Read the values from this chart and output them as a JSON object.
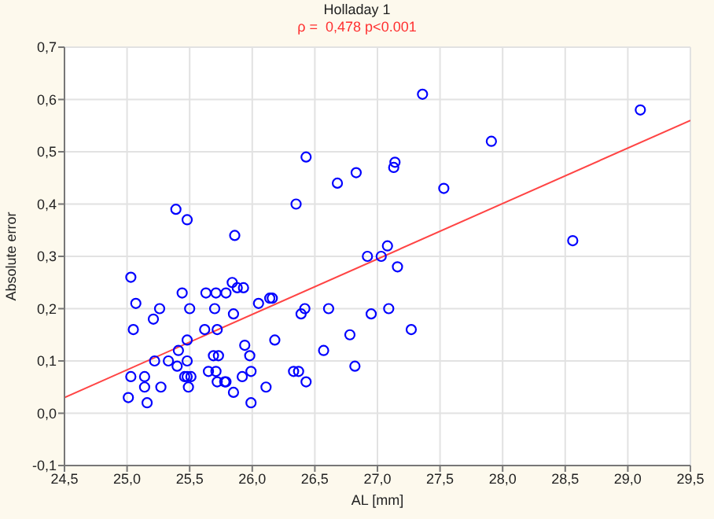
{
  "chart_data": {
    "type": "scatter",
    "title": "Holladay 1",
    "subtitle": "ρ =  0,478 p<0.001",
    "xlabel": "AL [mm]",
    "ylabel": "Absolute error",
    "xlim": [
      24.5,
      29.5
    ],
    "xticks": [
      {
        "value": 24.5,
        "label": "24,5"
      },
      {
        "value": 25,
        "label": "25,0"
      },
      {
        "value": 25.5,
        "label": "25,5"
      },
      {
        "value": 26,
        "label": "26,0"
      },
      {
        "value": 26.5,
        "label": "26,5"
      },
      {
        "value": 27,
        "label": "27,0"
      },
      {
        "value": 27.5,
        "label": "27,5"
      },
      {
        "value": 28,
        "label": "28,0"
      },
      {
        "value": 28.5,
        "label": "28,5"
      },
      {
        "value": 29,
        "label": "29,0"
      },
      {
        "value": 29.5,
        "label": "29,5"
      }
    ],
    "ylim": [
      -0.1,
      0.7
    ],
    "yticks": [
      {
        "value": -0.1,
        "label": "-0,1"
      },
      {
        "value": 0,
        "label": "0,0"
      },
      {
        "value": 0.1,
        "label": "0,1"
      },
      {
        "value": 0.2,
        "label": "0,2"
      },
      {
        "value": 0.3,
        "label": "0,3"
      },
      {
        "value": 0.4,
        "label": "0,4"
      },
      {
        "value": 0.5,
        "label": "0,5"
      },
      {
        "value": 0.6,
        "label": "0,6"
      },
      {
        "value": 0.7,
        "label": "0,7"
      }
    ],
    "grid": true,
    "marker": "circle",
    "series": [
      {
        "color": "#0000ff",
        "x": [
          25.01,
          25.03,
          25.03,
          25.05,
          25.07,
          25.14,
          25.14,
          25.16,
          25.21,
          25.22,
          25.26,
          25.27,
          25.33,
          25.39,
          25.4,
          25.41,
          25.44,
          25.46,
          25.48,
          25.48,
          25.48,
          25.48,
          25.49,
          25.5,
          25.51,
          25.62,
          25.63,
          25.65,
          25.69,
          25.7,
          25.71,
          25.71,
          25.72,
          25.72,
          25.73,
          25.78,
          25.79,
          25.79,
          25.84,
          25.85,
          25.85,
          25.86,
          25.88,
          25.92,
          25.93,
          25.94,
          25.98,
          25.99,
          25.99,
          26.05,
          26.11,
          26.14,
          26.16,
          26.18,
          26.33,
          26.35,
          26.37,
          26.39,
          26.42,
          26.43,
          26.43,
          26.57,
          26.61,
          26.68,
          26.78,
          26.82,
          26.83,
          26.92,
          26.95,
          27.36,
          29.1,
          27.91,
          27.14,
          27.13,
          27.53,
          28.56,
          27.08,
          27.03,
          27.16,
          27.09,
          27.27
        ],
        "values": [
          0.03,
          0.07,
          0.26,
          0.16,
          0.21,
          0.07,
          0.05,
          0.02,
          0.18,
          0.1,
          0.2,
          0.05,
          0.1,
          0.39,
          0.09,
          0.12,
          0.23,
          0.07,
          0.37,
          0.14,
          0.1,
          0.07,
          0.05,
          0.2,
          0.07,
          0.16,
          0.23,
          0.08,
          0.11,
          0.2,
          0.23,
          0.08,
          0.16,
          0.06,
          0.11,
          0.06,
          0.06,
          0.23,
          0.25,
          0.19,
          0.04,
          0.34,
          0.24,
          0.07,
          0.24,
          0.13,
          0.11,
          0.08,
          0.02,
          0.21,
          0.05,
          0.22,
          0.22,
          0.14,
          0.08,
          0.4,
          0.08,
          0.19,
          0.2,
          0.49,
          0.06,
          0.12,
          0.2,
          0.44,
          0.15,
          0.09,
          0.46,
          0.3,
          0.19,
          0.61,
          0.58,
          0.52,
          0.48,
          0.47,
          0.43,
          0.33,
          0.32,
          0.3,
          0.28,
          0.2,
          0.16
        ]
      },
      {
        "type": "line",
        "color": "#ff4444",
        "marker": "none",
        "x": [
          24.5,
          29.5
        ],
        "values": [
          0.03,
          0.56
        ]
      }
    ]
  }
}
